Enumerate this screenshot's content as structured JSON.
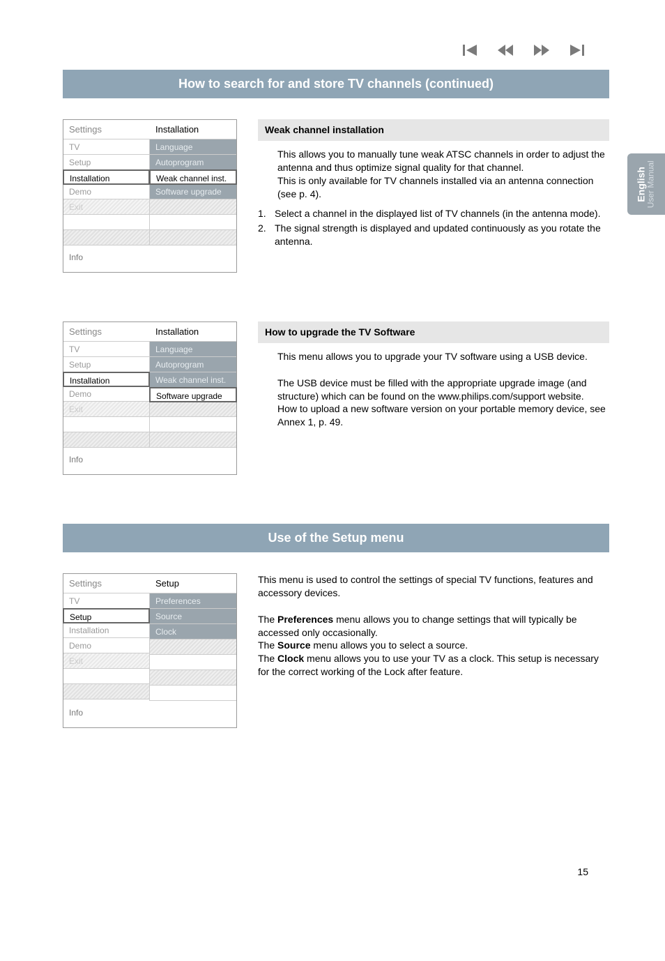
{
  "colors": {
    "title_bar_bg": "#8fa5b5",
    "title_bar_text": "#ffffff",
    "menu_fill_bg": "#9aa5ad",
    "menu_fill_text": "#e8edf0",
    "gray_text": "#999999",
    "hatch1": "#e1e1e1",
    "hatch2": "#efefef",
    "heading_bg": "#e6e6e6",
    "tab_bg": "#9aa5ad"
  },
  "nav_icons": [
    "skip-back",
    "rewind",
    "play",
    "skip-fwd"
  ],
  "title_bar_1": "How to search for and store TV channels (continued)",
  "menu1": {
    "header_left": "Settings",
    "header_right": "Installation",
    "left": [
      {
        "label": "TV",
        "style": "gray"
      },
      {
        "label": "Setup",
        "style": "gray"
      },
      {
        "label": "Installation",
        "style": "active"
      },
      {
        "label": "Demo",
        "style": "gray"
      },
      {
        "label": "Exit",
        "style": "hatched"
      },
      {
        "label": "",
        "style": "blank"
      },
      {
        "label": "",
        "style": "hatched-empty"
      }
    ],
    "right": [
      {
        "label": "Language",
        "style": "fill"
      },
      {
        "label": "Autoprogram",
        "style": "fill"
      },
      {
        "label": "Weak channel inst.",
        "style": "selected"
      },
      {
        "label": "Software upgrade",
        "style": "fill"
      },
      {
        "label": "",
        "style": "hatched-empty"
      },
      {
        "label": "",
        "style": "blank"
      },
      {
        "label": "",
        "style": "hatched-empty"
      }
    ],
    "info": "Info"
  },
  "section1": {
    "heading": "Weak channel installation",
    "body1": "This allows you to manually tune weak ATSC channels in order to adjust the antenna and thus optimize signal quality for that channel.",
    "body2": "This is only available for TV channels installed via an antenna connection (see p. 4).",
    "list": [
      {
        "num": "1.",
        "text": "Select a channel in the displayed list of TV channels (in the antenna mode)."
      },
      {
        "num": "2.",
        "text": "The signal strength is displayed and updated continuously as you rotate the antenna."
      }
    ]
  },
  "menu2": {
    "header_left": "Settings",
    "header_right": "Installation",
    "left": [
      {
        "label": "TV",
        "style": "gray"
      },
      {
        "label": "Setup",
        "style": "gray"
      },
      {
        "label": "Installation",
        "style": "active"
      },
      {
        "label": "Demo",
        "style": "gray"
      },
      {
        "label": "Exit",
        "style": "hatched"
      },
      {
        "label": "",
        "style": "blank"
      },
      {
        "label": "",
        "style": "hatched-empty"
      }
    ],
    "right": [
      {
        "label": "Language",
        "style": "fill"
      },
      {
        "label": "Autoprogram",
        "style": "fill"
      },
      {
        "label": "Weak channel inst.",
        "style": "fill"
      },
      {
        "label": "Software upgrade",
        "style": "selected"
      },
      {
        "label": "",
        "style": "hatched-empty"
      },
      {
        "label": "",
        "style": "blank"
      },
      {
        "label": "",
        "style": "hatched-empty"
      }
    ],
    "info": "Info"
  },
  "section2": {
    "heading": "How to upgrade the TV Software",
    "body1": "This menu allows you to upgrade your TV software using a USB device.",
    "body2": "The USB device must be filled with the appropriate upgrade image (and structure) which can be found on the www.philips.com/support website.",
    "body3": "How to upload a new software version on your portable memory device, see Annex 1, p. 49."
  },
  "title_bar_2": "Use of the Setup menu",
  "menu3": {
    "header_left": "Settings",
    "header_right": "Setup",
    "left": [
      {
        "label": "TV",
        "style": "gray"
      },
      {
        "label": "Setup",
        "style": "active"
      },
      {
        "label": "Installation",
        "style": "gray"
      },
      {
        "label": "Demo",
        "style": "gray"
      },
      {
        "label": "Exit",
        "style": "hatched"
      },
      {
        "label": "",
        "style": "blank"
      },
      {
        "label": "",
        "style": "hatched-empty"
      }
    ],
    "right": [
      {
        "label": "Preferences",
        "style": "fill"
      },
      {
        "label": "Source",
        "style": "fill"
      },
      {
        "label": "Clock",
        "style": "fill"
      },
      {
        "label": "",
        "style": "hatched-empty"
      },
      {
        "label": "",
        "style": "blank"
      },
      {
        "label": "",
        "style": "hatched-empty"
      },
      {
        "label": "",
        "style": "blank"
      }
    ],
    "info": "Info"
  },
  "section3": {
    "intro": "This menu is used to control the settings of special TV functions, features and accessory devices.",
    "para1a": "The ",
    "para1b": "Preferences",
    "para1c": " menu allows you to change settings that will typically be accessed only occasionally.",
    "para2a": "The ",
    "para2b": "Source",
    "para2c": " menu allows you to select a source.",
    "para3a": "The ",
    "para3b": "Clock",
    "para3c": " menu allows you to use your TV as a clock. This setup is necessary for the correct working of the Lock after feature."
  },
  "tab": {
    "line1": "English",
    "line2": "User Manual"
  },
  "page_number": "15"
}
